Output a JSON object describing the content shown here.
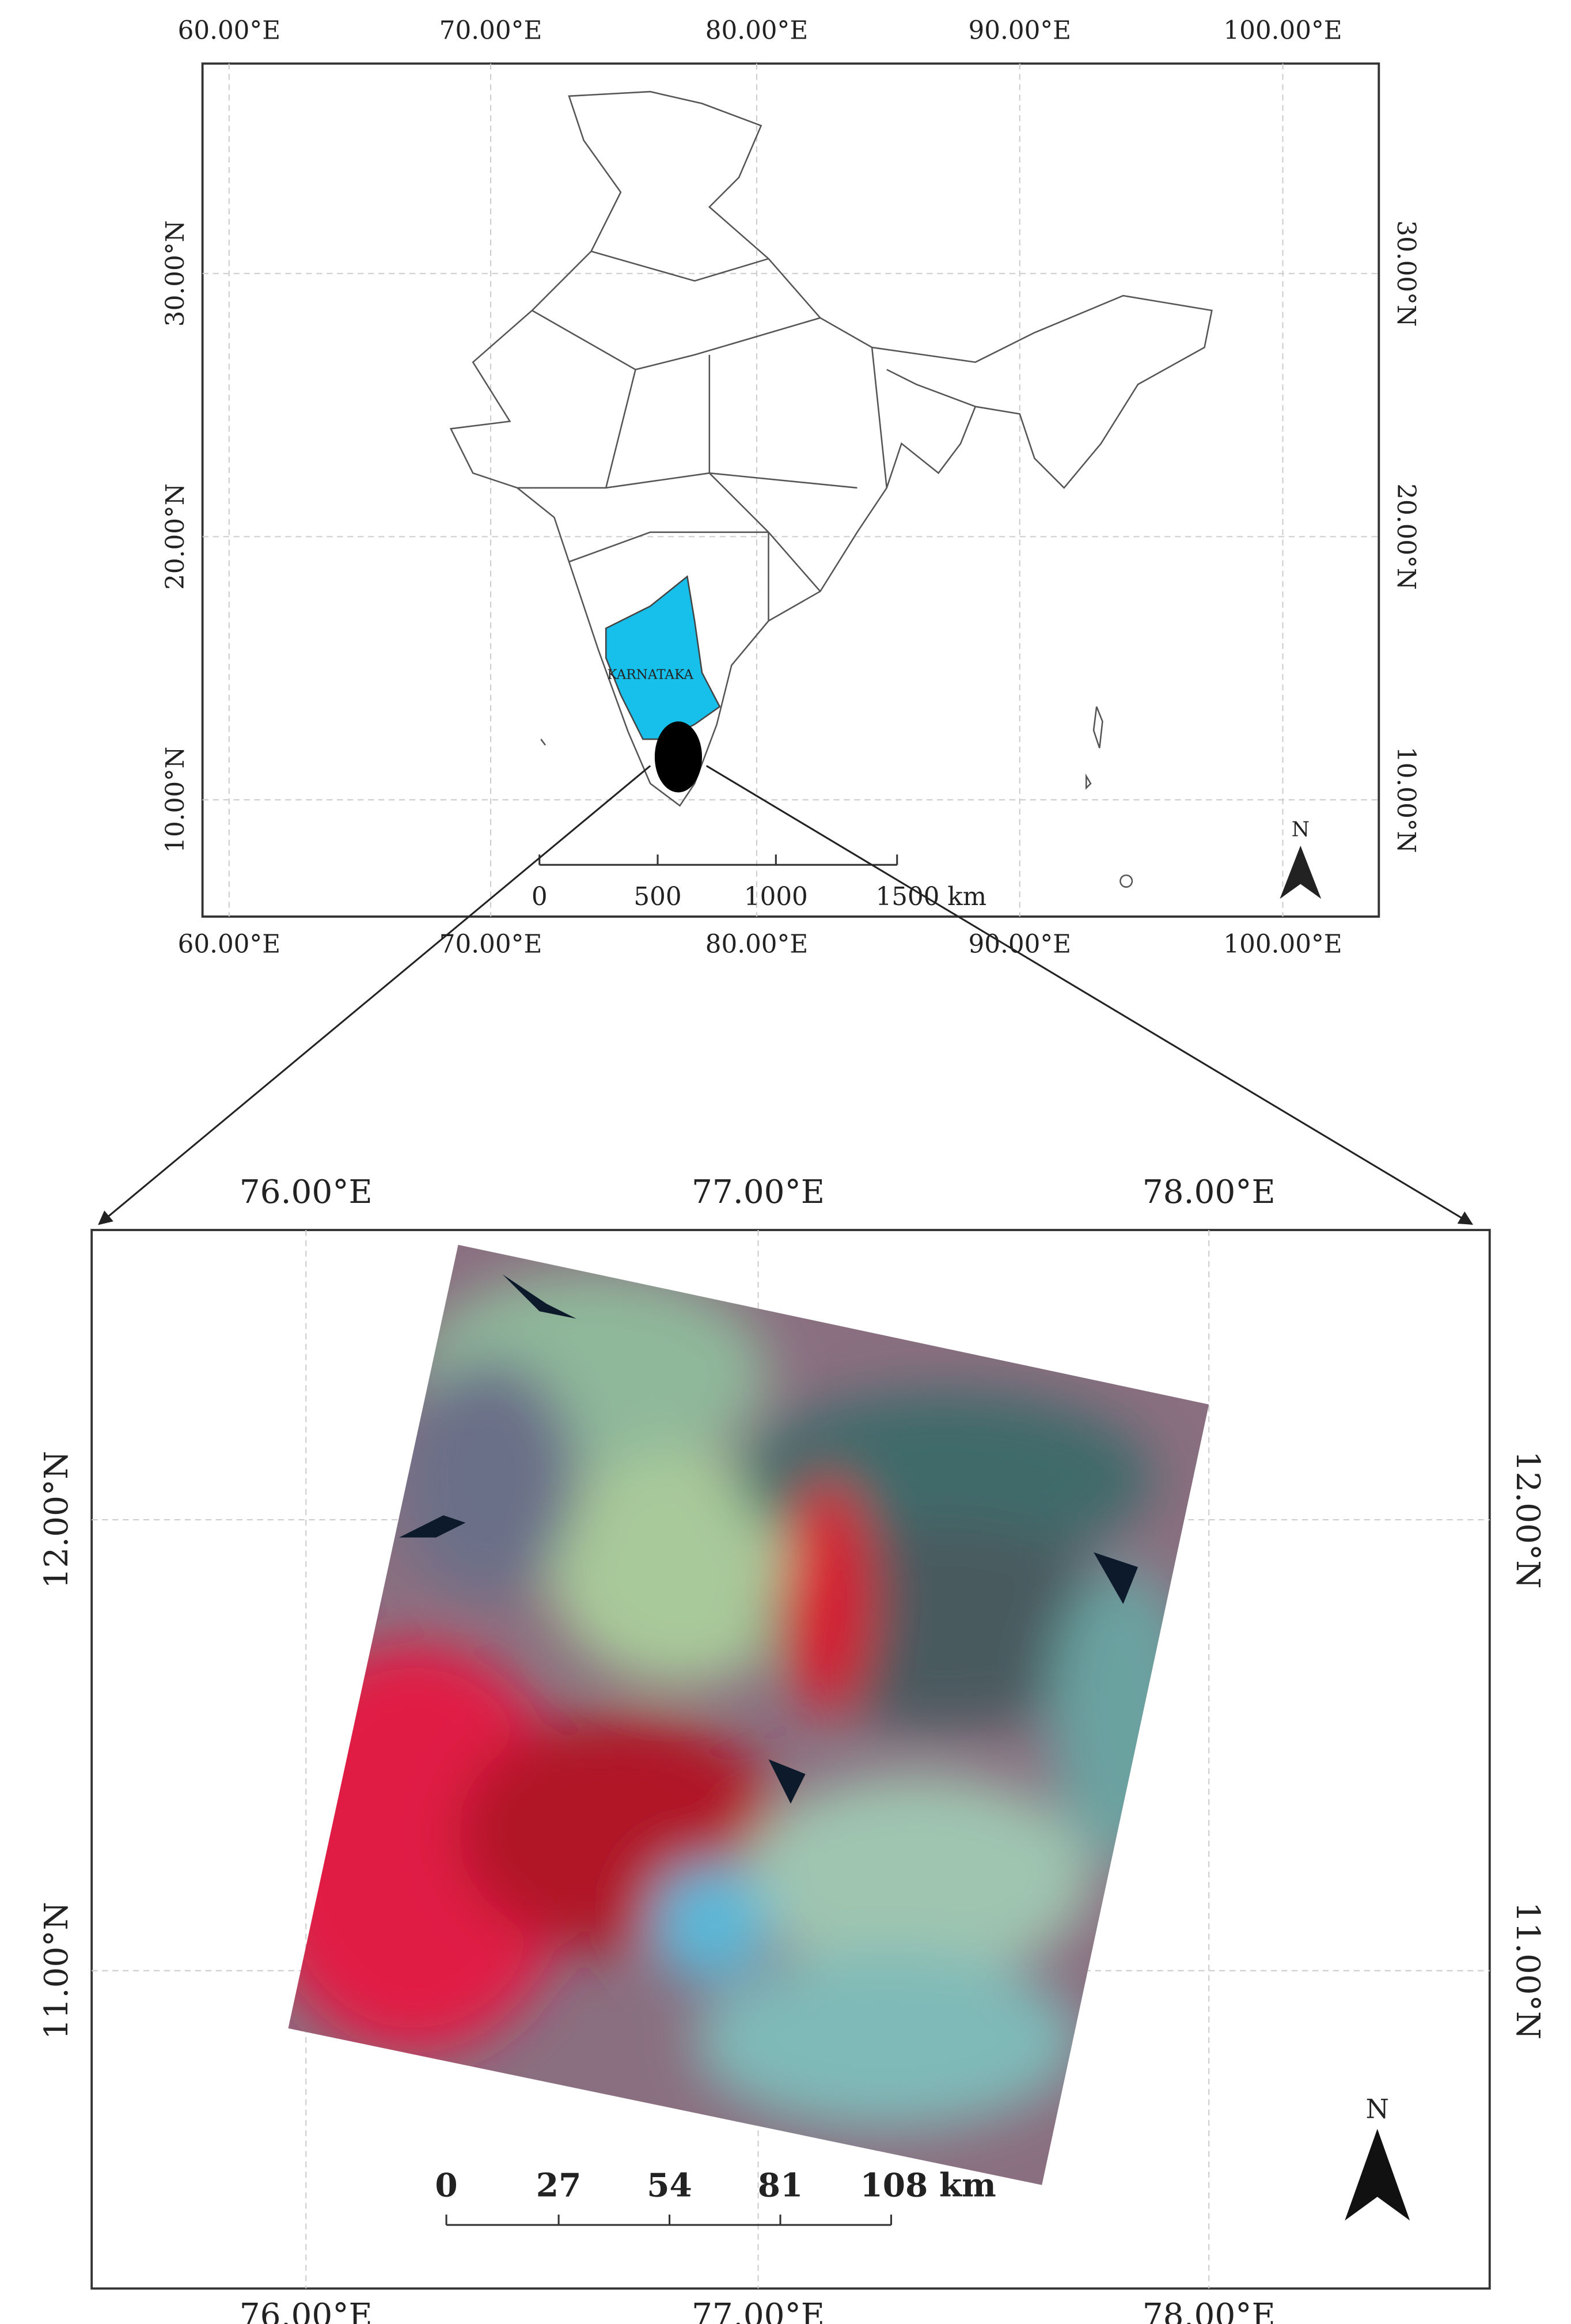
{
  "top_map": {
    "lon_labels": [
      "60.00°E",
      "70.00°E",
      "80.00°E",
      "90.00°E",
      "100.00°E"
    ],
    "lat_labels": [
      "30.00°N",
      "20.00°N",
      "10.00°N"
    ],
    "scale_labels": [
      "0",
      "500",
      "1000",
      "1500 km"
    ],
    "state_label": "KARNATAKA",
    "north": "N"
  },
  "bottom_map": {
    "lon_labels": [
      "76.00°E",
      "77.00°E",
      "78.00°E"
    ],
    "lat_labels": [
      "12.00°N",
      "11.00°N"
    ],
    "scale_labels": [
      "0",
      "27",
      "54",
      "81",
      "108 km"
    ],
    "north": "N"
  }
}
